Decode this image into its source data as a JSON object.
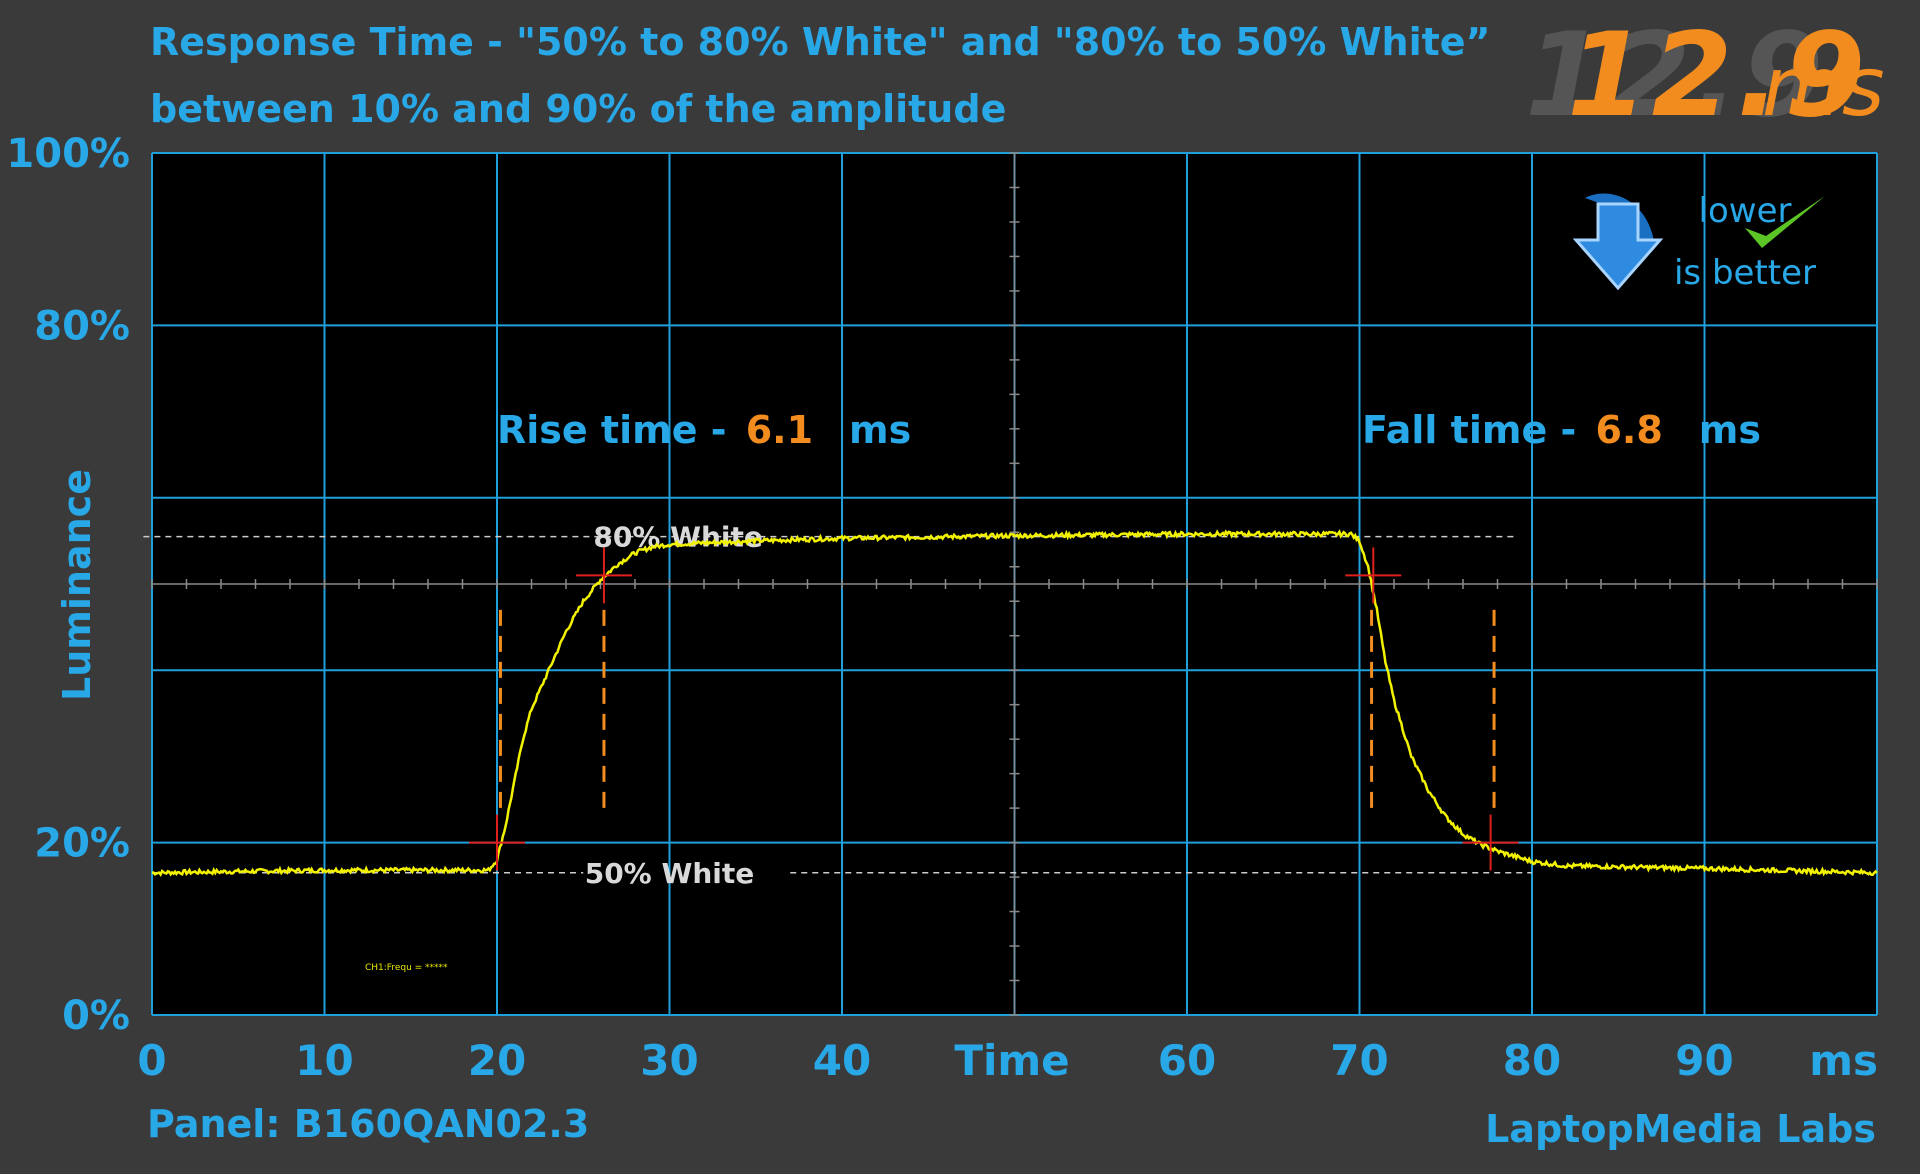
{
  "title_line1": "Response Time - \"50% to 80% White\" and \"80% to 50% White”",
  "title_line2": "between 10% and 90% of the amplitude",
  "result": {
    "value": "12.9",
    "unit": "ms"
  },
  "badge": {
    "line1": "lower",
    "line2": "is better",
    "icon": "down-arrow-icon",
    "check_icon": "checkmark-icon"
  },
  "footer": {
    "panel": "Panel: B160QAN02.3",
    "brand": "LaptopMedia Labs"
  },
  "colors": {
    "background": "#3a3a3a",
    "plot": "#000000",
    "grid": "#1f9fdc",
    "label": "#29a8e8",
    "accent": "#f28c1e",
    "trace": "#f2f200",
    "marker": "#e0201c",
    "dashed_ref": "#cccccc"
  },
  "chart_data": {
    "type": "line",
    "xlabel": "Time",
    "xunit": "ms",
    "ylabel": "Luminance",
    "xlim": [
      0,
      100
    ],
    "ylim": [
      0,
      100
    ],
    "x_ticks": [
      0,
      10,
      20,
      30,
      40,
      60,
      70,
      80,
      90
    ],
    "y_ticks": [
      {
        "value": 100,
        "label": "100%"
      },
      {
        "value": 80,
        "label": "80%"
      },
      {
        "value": 20,
        "label": "20%"
      },
      {
        "value": 0,
        "label": "0%"
      }
    ],
    "grid": true,
    "reference_lines": [
      {
        "label": "80% White",
        "y": 55.5
      },
      {
        "label": "50% White",
        "y": 16.5
      }
    ],
    "annotations": [
      {
        "prefix": "Rise time - ",
        "value": "6.1",
        "unit": "ms"
      },
      {
        "prefix": "Fall time - ",
        "value": "6.8",
        "unit": "ms"
      }
    ],
    "small_text": "CH1:Frequ = *****",
    "markers": [
      {
        "x": 20.0,
        "y": 20.0
      },
      {
        "x": 26.2,
        "y": 51.0
      },
      {
        "x": 70.8,
        "y": 51.0
      },
      {
        "x": 77.6,
        "y": 20.0
      }
    ],
    "measure_lines": [
      {
        "x": 20.2,
        "y0": 47,
        "y1": 24
      },
      {
        "x": 26.2,
        "y0": 47,
        "y1": 24
      },
      {
        "x": 70.7,
        "y0": 47,
        "y1": 24
      },
      {
        "x": 77.8,
        "y0": 47,
        "y1": 24
      }
    ],
    "series": [
      {
        "values": [
          [
            0,
            16.5
          ],
          [
            10,
            16.8
          ],
          [
            19.5,
            16.8
          ],
          [
            20.0,
            18.0
          ],
          [
            20.5,
            22.0
          ],
          [
            21.0,
            27.0
          ],
          [
            21.5,
            32.0
          ],
          [
            22.0,
            35.5
          ],
          [
            23.0,
            40.0
          ],
          [
            24.0,
            44.5
          ],
          [
            25.0,
            48.0
          ],
          [
            26.0,
            50.5
          ],
          [
            27.0,
            52.3
          ],
          [
            28.0,
            53.6
          ],
          [
            29.0,
            54.3
          ],
          [
            30.0,
            54.6
          ],
          [
            35.0,
            55.0
          ],
          [
            40.0,
            55.3
          ],
          [
            50.0,
            55.6
          ],
          [
            60.0,
            55.8
          ],
          [
            69.5,
            55.8
          ],
          [
            70.0,
            55.0
          ],
          [
            70.5,
            52.0
          ],
          [
            71.0,
            47.0
          ],
          [
            71.5,
            41.0
          ],
          [
            72.0,
            36.5
          ],
          [
            73.0,
            30.0
          ],
          [
            74.0,
            26.0
          ],
          [
            75.0,
            23.0
          ],
          [
            76.0,
            21.0
          ],
          [
            77.0,
            19.8
          ],
          [
            78.0,
            19.0
          ],
          [
            80.0,
            17.8
          ],
          [
            82.0,
            17.3
          ],
          [
            90.0,
            17.0
          ],
          [
            100,
            16.5
          ]
        ]
      }
    ]
  }
}
